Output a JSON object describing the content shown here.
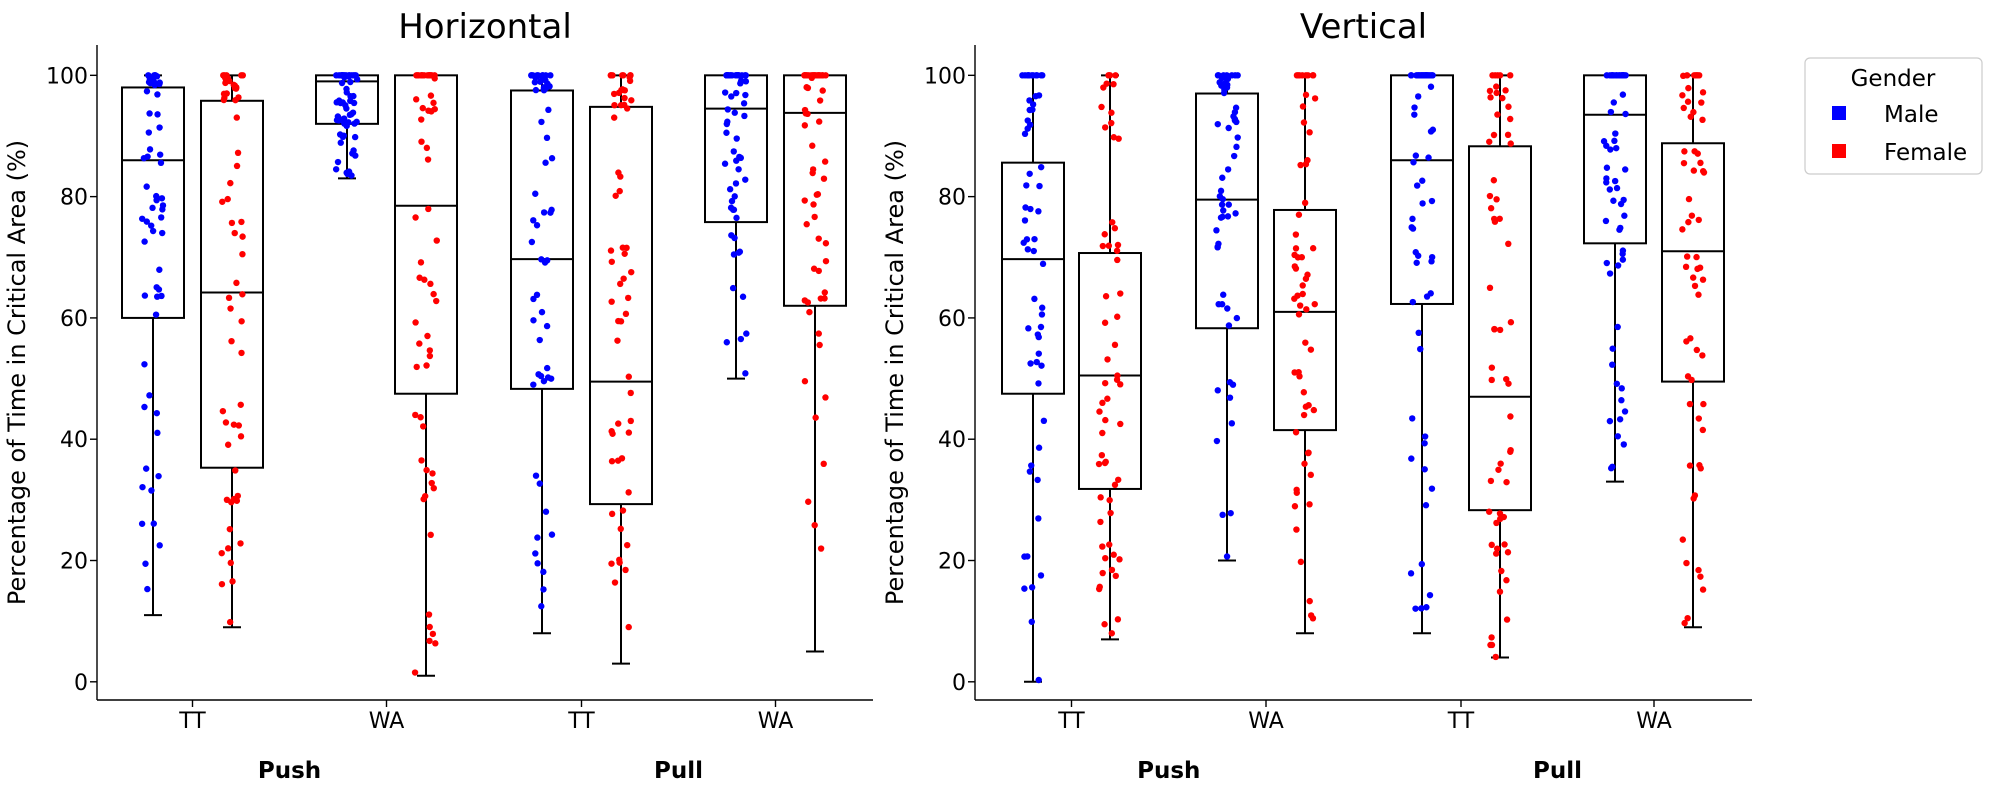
{
  "chart_data": [
    {
      "type": "box",
      "title": "Horizontal",
      "ylabel": "Percentage of Time in Critical Area (%)",
      "ylim": [
        -3,
        105
      ],
      "yticks": [
        0,
        20,
        40,
        60,
        80,
        100
      ],
      "groups": [
        {
          "label": "Push",
          "categories": [
            "TT",
            "WA"
          ]
        },
        {
          "label": "Pull",
          "categories": [
            "TT",
            "WA"
          ]
        }
      ],
      "boxes": [
        {
          "group": "Push",
          "category": "TT",
          "gender": "Male",
          "min": 11,
          "q1": 60,
          "median": 86,
          "q3": 98,
          "max": 100
        },
        {
          "group": "Push",
          "category": "TT",
          "gender": "Female",
          "min": 9,
          "q1": 35.3,
          "median": 64.2,
          "q3": 95.8,
          "max": 100
        },
        {
          "group": "Push",
          "category": "WA",
          "gender": "Male",
          "min": 83,
          "q1": 92,
          "median": 99,
          "q3": 100,
          "max": 100
        },
        {
          "group": "Push",
          "category": "WA",
          "gender": "Female",
          "min": 1,
          "q1": 47.5,
          "median": 78.5,
          "q3": 100,
          "max": 100
        },
        {
          "group": "Pull",
          "category": "TT",
          "gender": "Male",
          "min": 8,
          "q1": 48.3,
          "median": 69.7,
          "q3": 97.5,
          "max": 100
        },
        {
          "group": "Pull",
          "category": "TT",
          "gender": "Female",
          "min": 3,
          "q1": 29.3,
          "median": 49.5,
          "q3": 94.8,
          "max": 100
        },
        {
          "group": "Pull",
          "category": "WA",
          "gender": "Male",
          "min": 50,
          "q1": 75.8,
          "median": 94.5,
          "q3": 100,
          "max": 100
        },
        {
          "group": "Pull",
          "category": "WA",
          "gender": "Female",
          "min": 5,
          "q1": 62,
          "median": 93.8,
          "q3": 100,
          "max": 100
        }
      ]
    },
    {
      "type": "box",
      "title": "Vertical",
      "ylabel": "Percentage of Time in Critical Area (%)",
      "ylim": [
        -3,
        105
      ],
      "yticks": [
        0,
        20,
        40,
        60,
        80,
        100
      ],
      "groups": [
        {
          "label": "Push",
          "categories": [
            "TT",
            "WA"
          ]
        },
        {
          "label": "Pull",
          "categories": [
            "TT",
            "WA"
          ]
        }
      ],
      "boxes": [
        {
          "group": "Push",
          "category": "TT",
          "gender": "Male",
          "min": 0,
          "q1": 47.5,
          "median": 69.7,
          "q3": 85.6,
          "max": 100
        },
        {
          "group": "Push",
          "category": "TT",
          "gender": "Female",
          "min": 7,
          "q1": 31.8,
          "median": 50.5,
          "q3": 70.7,
          "max": 100
        },
        {
          "group": "Push",
          "category": "WA",
          "gender": "Male",
          "min": 20,
          "q1": 58.3,
          "median": 79.5,
          "q3": 97,
          "max": 100
        },
        {
          "group": "Push",
          "category": "WA",
          "gender": "Female",
          "min": 8,
          "q1": 41.5,
          "median": 61,
          "q3": 77.8,
          "max": 100
        },
        {
          "group": "Pull",
          "category": "TT",
          "gender": "Male",
          "min": 8,
          "q1": 62.3,
          "median": 86,
          "q3": 100,
          "max": 100
        },
        {
          "group": "Pull",
          "category": "TT",
          "gender": "Female",
          "min": 4,
          "q1": 28.3,
          "median": 47,
          "q3": 88.3,
          "max": 100
        },
        {
          "group": "Pull",
          "category": "WA",
          "gender": "Male",
          "min": 33,
          "q1": 72.3,
          "median": 93.5,
          "q3": 100,
          "max": 100
        },
        {
          "group": "Pull",
          "category": "WA",
          "gender": "Female",
          "min": 9,
          "q1": 49.5,
          "median": 71,
          "q3": 88.8,
          "max": 100
        }
      ]
    }
  ],
  "legend": {
    "title": "Gender",
    "placement": "outside-top-right",
    "entries": [
      {
        "label": "Male",
        "color": "#0000ff"
      },
      {
        "label": "Female",
        "color": "#ff0000"
      }
    ]
  },
  "colors": {
    "Male": "#0000ff",
    "Female": "#ff0000"
  }
}
